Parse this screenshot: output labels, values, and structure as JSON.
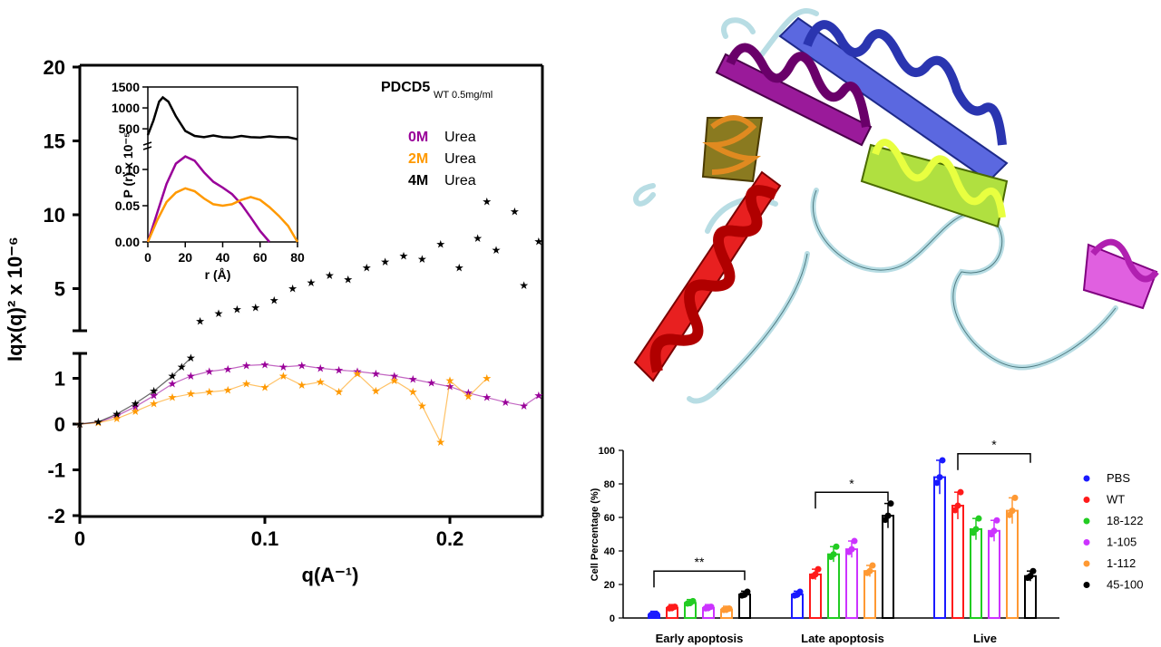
{
  "figure": {
    "label": "composite figure"
  },
  "colors": {
    "purple": "#990099",
    "orange": "#ff9900",
    "black": "#000000",
    "PBS": "#1a1aff",
    "WT": "#ff1a1a",
    "18-122": "#22cc22",
    "1-105": "#cc33ff",
    "1-112": "#ff9933",
    "45-100": "#000000"
  },
  "chart_data": [
    {
      "id": "saxs-kratky",
      "type": "scatter",
      "title": "",
      "xlabel": "q(A⁻¹)",
      "ylabel": "Iqx(q)² x 10⁻⁶",
      "xlim": [
        0,
        0.25
      ],
      "ylim_lower": [
        -2,
        1.5
      ],
      "ylim_upper": [
        2,
        20
      ],
      "x_ticks": [
        "0",
        "0.1",
        "0.2"
      ],
      "y_ticks_lower": [
        "-2",
        "-1",
        "0",
        "1"
      ],
      "y_ticks_upper": [
        "5",
        "10",
        "15",
        "20"
      ],
      "annotation": "PDCD5",
      "annotation_sub": "WT 0.5mg/ml",
      "legend": [
        {
          "conc": "0M",
          "word": "Urea",
          "color": "#990099"
        },
        {
          "conc": "2M",
          "word": "Urea",
          "color": "#ff9900"
        },
        {
          "conc": "4M",
          "word": "Urea",
          "color": "#000000"
        }
      ],
      "series": [
        {
          "name": "0M Urea",
          "color": "#990099",
          "points": [
            [
              0.0,
              0.0
            ],
            [
              0.01,
              0.04
            ],
            [
              0.02,
              0.18
            ],
            [
              0.03,
              0.38
            ],
            [
              0.04,
              0.62
            ],
            [
              0.05,
              0.88
            ],
            [
              0.06,
              1.05
            ],
            [
              0.07,
              1.15
            ],
            [
              0.08,
              1.2
            ],
            [
              0.09,
              1.28
            ],
            [
              0.1,
              1.3
            ],
            [
              0.11,
              1.25
            ],
            [
              0.12,
              1.28
            ],
            [
              0.13,
              1.22
            ],
            [
              0.14,
              1.18
            ],
            [
              0.15,
              1.15
            ],
            [
              0.16,
              1.1
            ],
            [
              0.17,
              1.05
            ],
            [
              0.18,
              0.98
            ],
            [
              0.19,
              0.9
            ],
            [
              0.2,
              0.82
            ],
            [
              0.21,
              0.68
            ],
            [
              0.22,
              0.58
            ],
            [
              0.23,
              0.48
            ],
            [
              0.24,
              0.4
            ],
            [
              0.248,
              0.62
            ]
          ]
        },
        {
          "name": "2M Urea",
          "color": "#ff9900",
          "points": [
            [
              0.0,
              0.0
            ],
            [
              0.01,
              0.03
            ],
            [
              0.02,
              0.12
            ],
            [
              0.03,
              0.28
            ],
            [
              0.04,
              0.45
            ],
            [
              0.05,
              0.58
            ],
            [
              0.06,
              0.66
            ],
            [
              0.07,
              0.7
            ],
            [
              0.08,
              0.74
            ],
            [
              0.09,
              0.88
            ],
            [
              0.1,
              0.8
            ],
            [
              0.11,
              1.05
            ],
            [
              0.12,
              0.85
            ],
            [
              0.13,
              0.92
            ],
            [
              0.14,
              0.7
            ],
            [
              0.15,
              1.1
            ],
            [
              0.16,
              0.72
            ],
            [
              0.17,
              0.95
            ],
            [
              0.18,
              0.7
            ],
            [
              0.185,
              0.4
            ],
            [
              0.195,
              -0.4
            ],
            [
              0.2,
              0.95
            ],
            [
              0.21,
              0.6
            ],
            [
              0.22,
              1.0
            ]
          ]
        },
        {
          "name": "4M Urea",
          "color": "#000000",
          "points": [
            [
              0.0,
              0.0
            ],
            [
              0.01,
              0.05
            ],
            [
              0.02,
              0.22
            ],
            [
              0.03,
              0.45
            ],
            [
              0.04,
              0.72
            ],
            [
              0.05,
              1.05
            ],
            [
              0.055,
              1.25
            ],
            [
              0.06,
              1.45
            ],
            [
              0.065,
              2.8
            ],
            [
              0.075,
              3.3
            ],
            [
              0.085,
              3.6
            ],
            [
              0.095,
              3.7
            ],
            [
              0.105,
              4.2
            ],
            [
              0.115,
              5.0
            ],
            [
              0.125,
              5.4
            ],
            [
              0.135,
              5.9
            ],
            [
              0.145,
              5.6
            ],
            [
              0.155,
              6.4
            ],
            [
              0.165,
              6.8
            ],
            [
              0.175,
              7.2
            ],
            [
              0.185,
              7.0
            ],
            [
              0.195,
              8.0
            ],
            [
              0.205,
              6.4
            ],
            [
              0.215,
              8.4
            ],
            [
              0.22,
              10.9
            ],
            [
              0.225,
              7.6
            ],
            [
              0.235,
              10.2
            ],
            [
              0.24,
              5.2
            ],
            [
              0.248,
              8.2
            ]
          ]
        }
      ]
    },
    {
      "id": "pr-inset",
      "type": "line",
      "xlabel": "r (Å)",
      "ylabel": "P (r) x 10⁻⁵",
      "xlim": [
        0,
        80
      ],
      "x_ticks": [
        "0",
        "20",
        "40",
        "60",
        "80"
      ],
      "y_ticks_lower": [
        "0.00",
        "0.05",
        "0.10"
      ],
      "y_ticks_upper": [
        "500",
        "1000",
        "1500"
      ],
      "series": [
        {
          "name": "0M Urea",
          "color": "#990099",
          "points": [
            [
              0,
              0
            ],
            [
              5,
              0.04
            ],
            [
              10,
              0.08
            ],
            [
              15,
              0.108
            ],
            [
              20,
              0.118
            ],
            [
              25,
              0.112
            ],
            [
              30,
              0.096
            ],
            [
              35,
              0.083
            ],
            [
              40,
              0.075
            ],
            [
              45,
              0.066
            ],
            [
              50,
              0.052
            ],
            [
              55,
              0.034
            ],
            [
              60,
              0.015
            ],
            [
              65,
              0.0
            ]
          ]
        },
        {
          "name": "2M Urea",
          "color": "#ff9900",
          "points": [
            [
              0,
              0
            ],
            [
              5,
              0.03
            ],
            [
              10,
              0.055
            ],
            [
              15,
              0.068
            ],
            [
              20,
              0.074
            ],
            [
              25,
              0.07
            ],
            [
              30,
              0.06
            ],
            [
              35,
              0.052
            ],
            [
              40,
              0.05
            ],
            [
              45,
              0.052
            ],
            [
              50,
              0.058
            ],
            [
              55,
              0.062
            ],
            [
              60,
              0.058
            ],
            [
              65,
              0.048
            ],
            [
              70,
              0.036
            ],
            [
              75,
              0.022
            ],
            [
              80,
              0.0
            ]
          ]
        },
        {
          "name": "4M Urea",
          "color": "#000000",
          "points": [
            [
              0,
              350
            ],
            [
              3,
              700
            ],
            [
              6,
              1150
            ],
            [
              8,
              1250
            ],
            [
              11,
              1150
            ],
            [
              15,
              800
            ],
            [
              20,
              450
            ],
            [
              25,
              330
            ],
            [
              30,
              300
            ],
            [
              35,
              340
            ],
            [
              40,
              300
            ],
            [
              45,
              290
            ],
            [
              50,
              330
            ],
            [
              55,
              300
            ],
            [
              60,
              290
            ],
            [
              65,
              320
            ],
            [
              70,
              300
            ],
            [
              75,
              300
            ],
            [
              80,
              250
            ]
          ]
        }
      ]
    },
    {
      "id": "apoptosis-bars",
      "type": "bar",
      "ylabel": "Cell Percentage (%)",
      "ylim": [
        0,
        100
      ],
      "y_ticks": [
        "0",
        "20",
        "40",
        "60",
        "80",
        "100"
      ],
      "categories": [
        "Early apoptosis",
        "Late apoptosis",
        "Live"
      ],
      "series": [
        {
          "name": "PBS",
          "color": "#1a1aff",
          "values": [
            2,
            14,
            84
          ]
        },
        {
          "name": "WT",
          "color": "#ff1a1a",
          "values": [
            6,
            26,
            67
          ]
        },
        {
          "name": "18-122",
          "color": "#22cc22",
          "values": [
            9,
            38,
            53
          ]
        },
        {
          "name": "1-105",
          "color": "#cc33ff",
          "values": [
            6,
            41,
            52
          ]
        },
        {
          "name": "1-112",
          "color": "#ff9933",
          "values": [
            5,
            28,
            64
          ]
        },
        {
          "name": "45-100",
          "color": "#000000",
          "values": [
            14,
            61,
            25
          ]
        }
      ],
      "significance": [
        {
          "group": "Early apoptosis",
          "label": "**",
          "from": "PBS",
          "to": "45-100"
        },
        {
          "group": "Late apoptosis",
          "label": "*",
          "from": "WT",
          "to": "45-100"
        },
        {
          "group": "Live",
          "label": "*",
          "from": "WT",
          "to": "45-100"
        }
      ]
    }
  ],
  "structure": {
    "kind": "protein ribbon"
  }
}
